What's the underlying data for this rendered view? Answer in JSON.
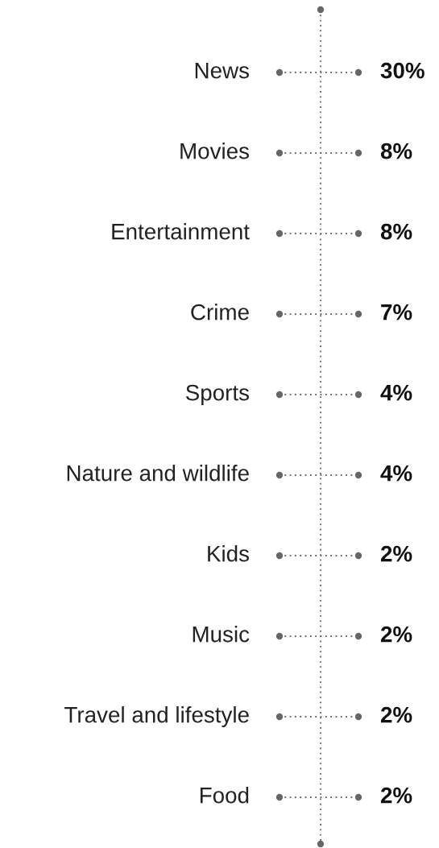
{
  "chart_data": {
    "type": "other",
    "categories": [
      "News",
      "Movies",
      "Entertainment",
      "Crime",
      "Sports",
      "Nature and wildlife",
      "Kids",
      "Music",
      "Travel and lifestyle",
      "Food"
    ],
    "values": [
      30,
      8,
      8,
      7,
      4,
      4,
      2,
      2,
      2,
      2
    ],
    "value_labels": [
      "30%",
      "8%",
      "8%",
      "7%",
      "4%",
      "4%",
      "2%",
      "2%",
      "2%",
      "2%"
    ],
    "color": "#666666"
  }
}
